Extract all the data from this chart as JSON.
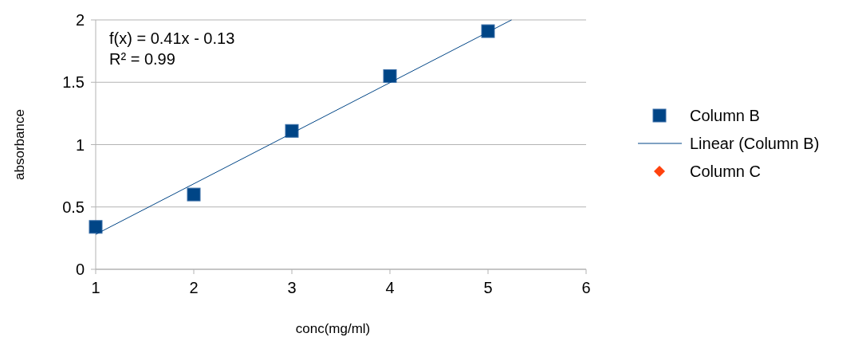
{
  "chart_data": {
    "type": "scatter",
    "xlabel": "conc(mg/ml)",
    "ylabel": "absorbance",
    "xlim": [
      1,
      6
    ],
    "xticks": [
      1,
      2,
      3,
      4,
      5,
      6
    ],
    "ylim": [
      0,
      2
    ],
    "yticks": [
      0,
      0.5,
      1,
      1.5,
      2
    ],
    "grid": "y",
    "legend": "right",
    "annotations": [
      "f(x) = 0.41x - 0.13",
      "R² = 0.99"
    ],
    "series": [
      {
        "name": "Column B",
        "marker": "square",
        "color": "#004586",
        "x": [
          1,
          2,
          3,
          4,
          5
        ],
        "values": [
          0.34,
          0.6,
          1.11,
          1.55,
          1.91
        ]
      },
      {
        "name": "Linear (Column B)",
        "type": "line",
        "marker": "none",
        "color": "#004586",
        "x": [
          1,
          5.24
        ],
        "values": [
          0.28,
          2.0
        ]
      },
      {
        "name": "Column C",
        "marker": "diamond",
        "color": "#ff420e"
      }
    ]
  }
}
